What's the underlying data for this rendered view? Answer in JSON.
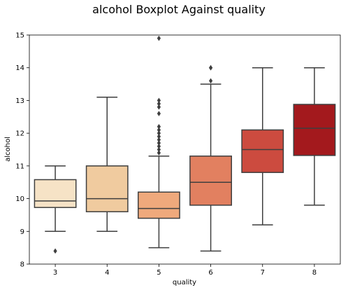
{
  "chart_data": {
    "type": "boxplot",
    "title": "alcohol Boxplot Against quality",
    "xlabel": "quality",
    "ylabel": "alcohol",
    "ylim": [
      8,
      15
    ],
    "yticks": [
      "8",
      "9",
      "10",
      "11",
      "12",
      "13",
      "14",
      "15"
    ],
    "grid": false,
    "categories": [
      "3",
      "4",
      "5",
      "6",
      "7",
      "8"
    ],
    "colors": [
      "#f6e3c6",
      "#f0cb9f",
      "#efa97c",
      "#e28060",
      "#cc4b3f",
      "#a3191d"
    ],
    "boxes": [
      {
        "q1": 9.73,
        "median": 9.93,
        "q3": 10.58,
        "whisker_low": 9.0,
        "whisker_high": 11.0,
        "outliers": [
          8.4
        ]
      },
      {
        "q1": 9.6,
        "median": 10.0,
        "q3": 11.0,
        "whisker_low": 9.0,
        "whisker_high": 13.1,
        "outliers": []
      },
      {
        "q1": 9.4,
        "median": 9.7,
        "q3": 10.2,
        "whisker_low": 8.5,
        "whisker_high": 11.3,
        "outliers": [
          11.4,
          11.5,
          11.6,
          11.7,
          11.8,
          11.9,
          12.0,
          12.1,
          12.2,
          12.6,
          12.8,
          12.9,
          13.0,
          14.9
        ]
      },
      {
        "q1": 9.8,
        "median": 10.5,
        "q3": 11.3,
        "whisker_low": 8.4,
        "whisker_high": 13.5,
        "outliers": [
          13.6,
          14.0,
          14.0
        ]
      },
      {
        "q1": 10.8,
        "median": 11.5,
        "q3": 12.1,
        "whisker_low": 9.2,
        "whisker_high": 14.0,
        "outliers": []
      },
      {
        "q1": 11.32,
        "median": 12.15,
        "q3": 12.88,
        "whisker_low": 9.8,
        "whisker_high": 14.0,
        "outliers": []
      }
    ]
  }
}
